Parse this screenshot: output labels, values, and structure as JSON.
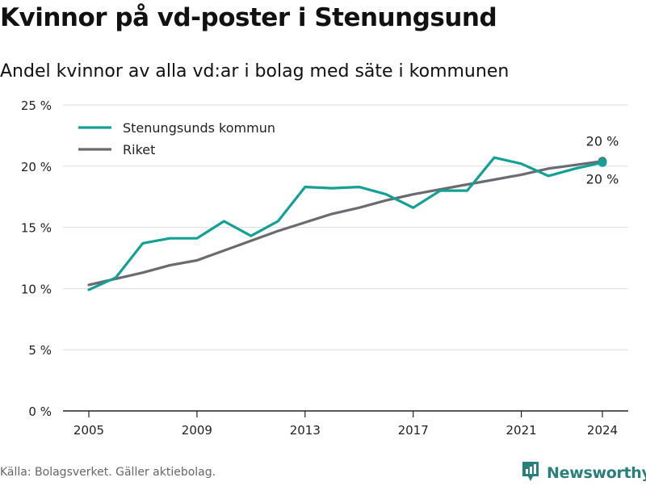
{
  "title": "Kvinnor på vd-poster i Stenungsund",
  "subtitle": "Andel kvinnor av alla vd:ar i bolag med säte i kommunen",
  "source": "Källa: Bolagsverket. Gäller aktiebolag.",
  "logo_text": "Newsworthy",
  "logo_icon": "newsworthy-logo-icon",
  "colors": {
    "kommun": "#14a093",
    "riket": "#6b6a70",
    "grid": "#dddddd",
    "axis": "#222222"
  },
  "chart_data": {
    "type": "line",
    "x": [
      2005,
      2006,
      2007,
      2008,
      2009,
      2010,
      2011,
      2012,
      2013,
      2014,
      2015,
      2016,
      2017,
      2018,
      2019,
      2020,
      2021,
      2022,
      2023,
      2024
    ],
    "x_ticks": [
      2005,
      2009,
      2013,
      2017,
      2021,
      2024
    ],
    "x_tick_labels": [
      "2005",
      "2009",
      "2013",
      "2017",
      "2021",
      "2024"
    ],
    "ylim": [
      0,
      25
    ],
    "y_ticks": [
      0,
      5,
      10,
      15,
      20,
      25
    ],
    "y_tick_labels": [
      "0 %",
      "5 %",
      "10 %",
      "15 %",
      "20 %",
      "25 %"
    ],
    "grid": true,
    "legend_position": "top-left",
    "series": [
      {
        "name": "Stenungsunds kommun",
        "values": [
          9.9,
          10.9,
          13.7,
          14.1,
          14.1,
          15.5,
          14.3,
          15.5,
          18.3,
          18.2,
          18.3,
          17.7,
          16.6,
          18.0,
          18.0,
          20.7,
          20.2,
          19.2,
          19.8,
          20.3
        ],
        "end_label": "20 %"
      },
      {
        "name": "Riket",
        "values": [
          10.3,
          10.8,
          11.3,
          11.9,
          12.3,
          13.1,
          13.9,
          14.7,
          15.4,
          16.1,
          16.6,
          17.2,
          17.7,
          18.1,
          18.5,
          18.9,
          19.3,
          19.8,
          20.1,
          20.4
        ],
        "end_label": "20 %"
      }
    ]
  }
}
